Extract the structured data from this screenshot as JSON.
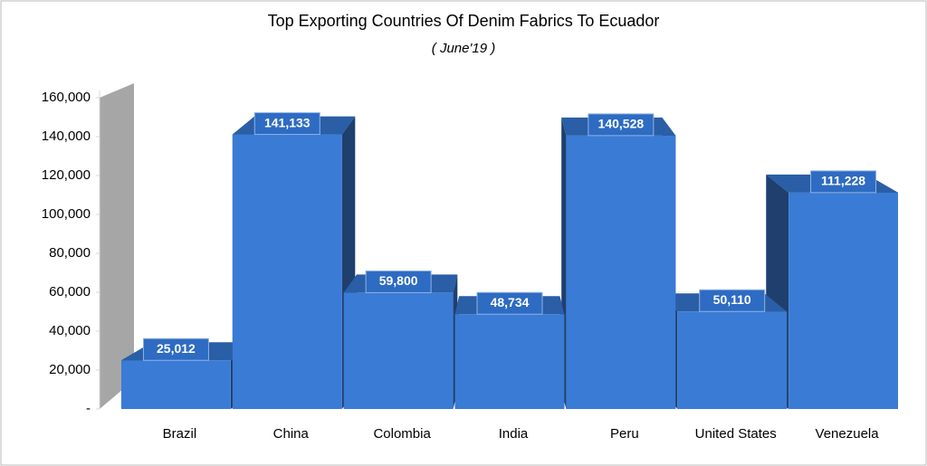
{
  "chart_data": {
    "type": "bar3d",
    "title": "Top Exporting Countries Of Denim Fabrics To Ecuador",
    "subtitle": "( June'19 )",
    "categories": [
      "Brazil",
      "China",
      "Colombia",
      "India",
      "Peru",
      "United States",
      "Venezuela"
    ],
    "values": [
      25012,
      141133,
      59800,
      48734,
      140528,
      50110,
      111228
    ],
    "value_labels": [
      "25,012",
      "141,133",
      "59,800",
      "48,734",
      "140,528",
      "50,110",
      "111,228"
    ],
    "color": "#3a7bd5",
    "ylim": [
      0,
      160000
    ],
    "yticks": [
      {
        "value": 0,
        "label": "-"
      },
      {
        "value": 20000,
        "label": "20,000"
      },
      {
        "value": 40000,
        "label": "40,000"
      },
      {
        "value": 60000,
        "label": "60,000"
      },
      {
        "value": 80000,
        "label": "80,000"
      },
      {
        "value": 100000,
        "label": "100,000"
      },
      {
        "value": 120000,
        "label": "120,000"
      },
      {
        "value": 140000,
        "label": "140,000"
      },
      {
        "value": 160000,
        "label": "160,000"
      }
    ]
  }
}
